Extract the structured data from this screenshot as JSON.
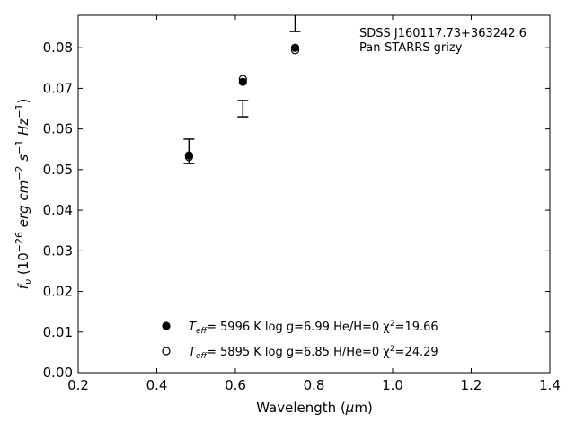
{
  "chart_data": {
    "type": "scatter",
    "title": "",
    "annotation": [
      "SDSS J160117.73+363242.6",
      "Pan-STARRS grizy"
    ],
    "xlabel_parts": [
      "Wavelength (",
      "μ",
      "m)"
    ],
    "ylabel_parts": [
      "f",
      "ν",
      " (10",
      "−26",
      " erg cm",
      "−2",
      " s",
      "−1",
      " Hz",
      "−1",
      ")"
    ],
    "xlim": [
      0.2,
      1.4
    ],
    "ylim": [
      0.0,
      0.088
    ],
    "xticks": [
      0.2,
      0.4,
      0.6,
      0.8,
      1.0,
      1.2,
      1.4
    ],
    "xtick_labels": [
      "0.2",
      "0.4",
      "0.6",
      "0.8",
      "1.0",
      "1.2",
      "1.4"
    ],
    "yticks": [
      0.0,
      0.01,
      0.02,
      0.03,
      0.04,
      0.05,
      0.06,
      0.07,
      0.08
    ],
    "ytick_labels": [
      "0.00",
      "0.01",
      "0.02",
      "0.03",
      "0.04",
      "0.05",
      "0.06",
      "0.07",
      "0.08"
    ],
    "grid": false,
    "legend_placement": "lower-center",
    "observed": {
      "x": [
        0.482,
        0.619,
        0.752
      ],
      "y": [
        0.0545,
        0.065,
        0.0865
      ],
      "yerr": [
        0.003,
        0.002,
        0.0025
      ]
    },
    "series": [
      {
        "marker": "filled-circle",
        "x": [
          0.482,
          0.619,
          0.752
        ],
        "y": [
          0.0535,
          0.0716,
          0.08
        ],
        "legend_parts": [
          "T",
          "eff",
          "=  5996 K  log g=6.99  He/H=0  χ",
          "2",
          "=19.66"
        ]
      },
      {
        "marker": "open-circle",
        "x": [
          0.482,
          0.619,
          0.752
        ],
        "y": [
          0.0531,
          0.0723,
          0.0794
        ],
        "legend_parts": [
          "T",
          "eff",
          "=  5895 K  log g=6.85  H/He=0  χ",
          "2",
          "=24.29"
        ]
      }
    ]
  }
}
